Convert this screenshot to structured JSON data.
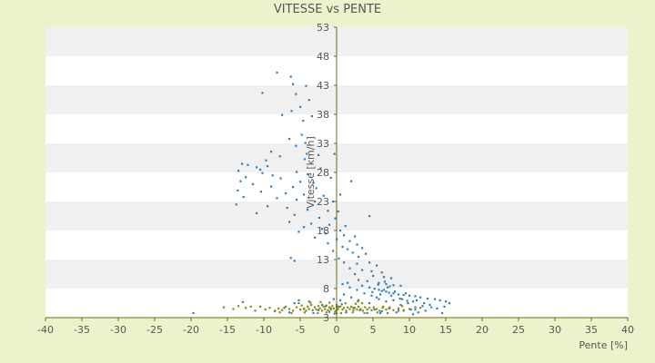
{
  "chart_data": {
    "type": "scatter",
    "title": "VITESSE vs PENTE",
    "xlabel": "Pente [%]",
    "ylabel": "Vitesse [km/h]",
    "xlim": [
      -40,
      40
    ],
    "ylim": [
      3,
      53
    ],
    "x_ticks": [
      -40,
      -35,
      -30,
      -25,
      -20,
      -15,
      -10,
      -5,
      0,
      5,
      10,
      15,
      20,
      25,
      30,
      35,
      40
    ],
    "y_ticks": [
      3,
      8,
      13,
      18,
      23,
      28,
      33,
      38,
      43,
      48,
      53
    ],
    "grid": "horizontal-bands",
    "legend": "none",
    "colors": {
      "background": "#eef2cc",
      "plot_band_light": "#ffffff",
      "plot_band_dark": "#f0f0f0",
      "axis": "#6b6b1a",
      "series_blue": "#2f7fc1",
      "series_olive": "#8a8a10"
    },
    "series": [
      {
        "color": "#2f7fc1",
        "points": [
          [
            -8.2,
            45.2
          ],
          [
            -6.3,
            44.5
          ],
          [
            -6.0,
            43.2
          ],
          [
            -4.2,
            42.9
          ],
          [
            -10.2,
            41.7
          ],
          [
            -5.6,
            41.5
          ],
          [
            -3.8,
            40.5
          ],
          [
            -5.0,
            39.3
          ],
          [
            -6.2,
            38.6
          ],
          [
            -7.5,
            37.9
          ],
          [
            -3.4,
            37.7
          ],
          [
            -4.6,
            36.9
          ],
          [
            -4.8,
            34.5
          ],
          [
            -6.5,
            33.8
          ],
          [
            -5.6,
            32.6
          ],
          [
            -4.3,
            33.1
          ],
          [
            -9.0,
            31.6
          ],
          [
            -4.1,
            31.2
          ],
          [
            -0.3,
            31.2
          ],
          [
            -2.5,
            31.0
          ],
          [
            -7.8,
            30.8
          ],
          [
            -4.4,
            30.3
          ],
          [
            -9.7,
            30.1
          ],
          [
            -13.0,
            29.5
          ],
          [
            -9.5,
            29.1
          ],
          [
            -12.2,
            29.3
          ],
          [
            -11.0,
            28.9
          ],
          [
            -2.2,
            28.7
          ],
          [
            -10.5,
            28.5
          ],
          [
            -13.5,
            28.3
          ],
          [
            -5.5,
            28.1
          ],
          [
            -10.2,
            27.9
          ],
          [
            -4.0,
            27.7
          ],
          [
            -8.8,
            27.5
          ],
          [
            -12.5,
            27.2
          ],
          [
            -7.7,
            27.0
          ],
          [
            -0.8,
            27.1
          ],
          [
            -13.2,
            26.5
          ],
          [
            -5.0,
            26.4
          ],
          [
            -3.2,
            26.2
          ],
          [
            2.0,
            26.5
          ],
          [
            -11.5,
            26.0
          ],
          [
            -9.0,
            25.6
          ],
          [
            -6.0,
            25.5
          ],
          [
            -2.8,
            25.3
          ],
          [
            -13.6,
            24.9
          ],
          [
            -10.4,
            24.7
          ],
          [
            -7.0,
            24.4
          ],
          [
            -4.5,
            24.2
          ],
          [
            -1.8,
            24.0
          ],
          [
            0.5,
            24.2
          ],
          [
            -12.8,
            23.8
          ],
          [
            -8.2,
            23.6
          ],
          [
            -5.5,
            23.3
          ],
          [
            -3.0,
            23.0
          ],
          [
            -0.5,
            23.0
          ],
          [
            -13.8,
            22.5
          ],
          [
            -9.5,
            22.2
          ],
          [
            -6.8,
            21.9
          ],
          [
            -4.0,
            21.6
          ],
          [
            -1.2,
            21.4
          ],
          [
            0.2,
            21.3
          ],
          [
            4.5,
            20.5
          ],
          [
            -11.0,
            21.0
          ],
          [
            -5.8,
            20.7
          ],
          [
            -2.4,
            20.2
          ],
          [
            -0.2,
            20.1
          ],
          [
            -6.5,
            19.5
          ],
          [
            -3.5,
            19.2
          ],
          [
            -1.0,
            19.0
          ],
          [
            1.2,
            18.8
          ],
          [
            -4.5,
            18.6
          ],
          [
            -2.0,
            18.3
          ],
          [
            0.5,
            18.0
          ],
          [
            -5.2,
            17.8
          ],
          [
            -1.5,
            17.5
          ],
          [
            1.0,
            17.2
          ],
          [
            2.5,
            17.0
          ],
          [
            -3.0,
            16.8
          ],
          [
            0.0,
            16.5
          ],
          [
            1.8,
            16.2
          ],
          [
            -1.2,
            15.8
          ],
          [
            2.8,
            15.6
          ],
          [
            0.8,
            15.2
          ],
          [
            3.5,
            15.0
          ],
          [
            1.5,
            14.8
          ],
          [
            -0.5,
            14.5
          ],
          [
            2.2,
            14.2
          ],
          [
            4.0,
            14.0
          ],
          [
            -6.3,
            13.3
          ],
          [
            -5.8,
            12.8
          ],
          [
            0.3,
            13.2
          ],
          [
            3.0,
            13.5
          ],
          [
            1.0,
            12.5
          ],
          [
            2.8,
            12.3
          ],
          [
            4.5,
            12.5
          ],
          [
            5.5,
            12.0
          ],
          [
            1.8,
            11.5
          ],
          [
            3.5,
            11.2
          ],
          [
            4.8,
            11.0
          ],
          [
            6.2,
            10.8
          ],
          [
            2.5,
            10.5
          ],
          [
            5.0,
            10.2
          ],
          [
            6.5,
            10.0
          ],
          [
            7.5,
            9.8
          ],
          [
            3.0,
            9.5
          ],
          [
            4.2,
            9.3
          ],
          [
            5.8,
            9.0
          ],
          [
            6.8,
            8.8
          ],
          [
            7.8,
            8.6
          ],
          [
            8.8,
            8.5
          ],
          [
            1.5,
            9.0
          ],
          [
            3.5,
            8.5
          ],
          [
            4.5,
            8.2
          ],
          [
            5.2,
            8.0
          ],
          [
            5.8,
            7.8
          ],
          [
            6.2,
            7.6
          ],
          [
            6.8,
            7.5
          ],
          [
            7.2,
            7.3
          ],
          [
            7.8,
            7.2
          ],
          [
            8.5,
            7.0
          ],
          [
            9.2,
            6.9
          ],
          [
            10.0,
            6.8
          ],
          [
            10.8,
            6.7
          ],
          [
            11.5,
            6.5
          ],
          [
            12.5,
            6.3
          ],
          [
            13.5,
            6.2
          ],
          [
            14.2,
            6.0
          ],
          [
            15.0,
            5.8
          ],
          [
            15.5,
            5.5
          ],
          [
            14.8,
            4.9
          ],
          [
            13.8,
            4.6
          ],
          [
            12.8,
            5.2
          ],
          [
            11.8,
            5.0
          ],
          [
            10.8,
            4.8
          ],
          [
            9.8,
            5.5
          ],
          [
            8.8,
            5.2
          ],
          [
            7.8,
            6.0
          ],
          [
            6.8,
            5.8
          ],
          [
            5.8,
            6.2
          ],
          [
            4.8,
            6.8
          ],
          [
            3.8,
            7.2
          ],
          [
            2.8,
            7.8
          ],
          [
            1.8,
            8.2
          ],
          [
            0.8,
            8.8
          ],
          [
            5.5,
            6.5
          ],
          [
            6.0,
            7.0
          ],
          [
            6.5,
            7.8
          ],
          [
            7.0,
            8.2
          ],
          [
            7.5,
            6.8
          ],
          [
            8.0,
            7.5
          ],
          [
            9.0,
            6.2
          ],
          [
            9.5,
            7.2
          ],
          [
            10.5,
            5.8
          ],
          [
            11.0,
            6.0
          ],
          [
            12.0,
            5.5
          ],
          [
            13.0,
            4.8
          ],
          [
            14.5,
            3.8
          ],
          [
            12.2,
            4.2
          ],
          [
            10.5,
            3.6
          ],
          [
            8.5,
            4.2
          ],
          [
            6.0,
            3.8
          ],
          [
            4.5,
            5.5
          ],
          [
            3.0,
            6.0
          ],
          [
            2.0,
            6.5
          ],
          [
            1.0,
            7.0
          ],
          [
            0.5,
            6.0
          ],
          [
            -19.7,
            3.8
          ],
          [
            -12.9,
            5.7
          ],
          [
            -5.8,
            5.5
          ],
          [
            -4.5,
            4.5
          ],
          [
            -3.2,
            3.8
          ],
          [
            -2.0,
            5.2
          ],
          [
            -1.0,
            4.0
          ],
          [
            -0.4,
            6.2
          ],
          [
            -7.2,
            4.7
          ],
          [
            -8.5,
            4.2
          ],
          [
            -6.5,
            3.9
          ],
          [
            -5.2,
            6.0
          ],
          [
            -3.8,
            5.8
          ],
          [
            -2.5,
            4.3
          ],
          [
            -1.5,
            5.0
          ],
          [
            -0.8,
            4.6
          ],
          [
            -0.3,
            3.7
          ],
          [
            0.2,
            4.9
          ],
          [
            0.7,
            5.3
          ],
          [
            1.3,
            3.9
          ],
          [
            2.3,
            4.7
          ],
          [
            3.2,
            4.3
          ],
          [
            4.2,
            3.8
          ],
          [
            5.2,
            4.4
          ],
          [
            6.2,
            4.1
          ],
          [
            7.2,
            4.6
          ],
          [
            8.2,
            3.9
          ],
          [
            9.2,
            4.3
          ],
          [
            10.2,
            4.4
          ],
          [
            11.2,
            3.9
          ],
          [
            6.6,
            9.2
          ],
          [
            7.3,
            8.4
          ],
          [
            5.7,
            8.7
          ],
          [
            4.9,
            7.4
          ],
          [
            8.7,
            6.3
          ],
          [
            9.7,
            5.9
          ]
        ]
      },
      {
        "color": "#8a8a10",
        "points": [
          [
            -15.5,
            4.8
          ],
          [
            -14.2,
            4.5
          ],
          [
            -12.5,
            4.7
          ],
          [
            -11.2,
            4.2
          ],
          [
            -10.5,
            4.9
          ],
          [
            -9.8,
            4.4
          ],
          [
            -9.2,
            4.7
          ],
          [
            -8.5,
            4.1
          ],
          [
            -8.0,
            4.6
          ],
          [
            -7.5,
            4.3
          ],
          [
            -7.0,
            4.9
          ],
          [
            -6.5,
            4.5
          ],
          [
            -6.0,
            4.2
          ],
          [
            -5.5,
            4.8
          ],
          [
            -5.0,
            4.4
          ],
          [
            -4.8,
            5.1
          ],
          [
            -4.5,
            4.6
          ],
          [
            -4.2,
            4.2
          ],
          [
            -4.0,
            4.9
          ],
          [
            -3.8,
            4.5
          ],
          [
            -3.5,
            5.2
          ],
          [
            -3.3,
            4.3
          ],
          [
            -3.0,
            4.8
          ],
          [
            -2.8,
            4.4
          ],
          [
            -2.5,
            5.0
          ],
          [
            -2.3,
            4.6
          ],
          [
            -2.0,
            4.2
          ],
          [
            -1.8,
            4.9
          ],
          [
            -1.6,
            4.5
          ],
          [
            -1.4,
            5.1
          ],
          [
            -1.2,
            4.3
          ],
          [
            -1.0,
            4.8
          ],
          [
            -0.8,
            4.4
          ],
          [
            -0.6,
            5.0
          ],
          [
            -0.4,
            4.6
          ],
          [
            -0.2,
            4.1
          ],
          [
            0.0,
            4.8
          ],
          [
            0.0,
            3.8
          ],
          [
            0.0,
            4.3
          ],
          [
            0.0,
            5.2
          ],
          [
            0.2,
            4.5
          ],
          [
            0.5,
            4.9
          ],
          [
            0.8,
            4.4
          ],
          [
            1.0,
            4.7
          ],
          [
            1.3,
            4.2
          ],
          [
            1.5,
            4.8
          ],
          [
            1.8,
            4.5
          ],
          [
            2.0,
            4.9
          ],
          [
            2.3,
            4.3
          ],
          [
            2.5,
            4.7
          ],
          [
            2.8,
            4.4
          ],
          [
            3.0,
            4.9
          ],
          [
            3.3,
            4.5
          ],
          [
            3.6,
            4.2
          ],
          [
            3.9,
            4.8
          ],
          [
            4.2,
            4.4
          ],
          [
            4.5,
            4.7
          ],
          [
            4.8,
            4.3
          ],
          [
            5.1,
            4.8
          ],
          [
            5.5,
            4.5
          ],
          [
            5.9,
            4.2
          ],
          [
            6.3,
            4.7
          ],
          [
            6.8,
            4.4
          ],
          [
            7.3,
            4.8
          ],
          [
            7.8,
            4.3
          ],
          [
            8.5,
            4.6
          ],
          [
            9.2,
            4.2
          ],
          [
            10.0,
            4.5
          ],
          [
            10.8,
            4.4
          ],
          [
            11.5,
            4.7
          ],
          [
            -5.2,
            5.5
          ],
          [
            -3.6,
            5.6
          ],
          [
            -2.2,
            5.7
          ],
          [
            -1.0,
            5.6
          ],
          [
            1.2,
            5.5
          ],
          [
            2.6,
            5.4
          ],
          [
            -7.8,
            3.9
          ],
          [
            -6.2,
            3.8
          ],
          [
            -4.4,
            3.9
          ],
          [
            -2.6,
            3.8
          ],
          [
            -1.4,
            3.9
          ],
          [
            0.6,
            3.8
          ],
          [
            2.2,
            3.9
          ],
          [
            3.8,
            3.8
          ],
          [
            5.6,
            3.9
          ],
          [
            7.0,
            3.8
          ],
          [
            2.9,
            5.8
          ],
          [
            3.5,
            5.5
          ],
          [
            6.4,
            4.9
          ],
          [
            9.0,
            5.0
          ],
          [
            -13.5,
            5.0
          ],
          [
            -11.8,
            4.9
          ]
        ]
      }
    ]
  }
}
